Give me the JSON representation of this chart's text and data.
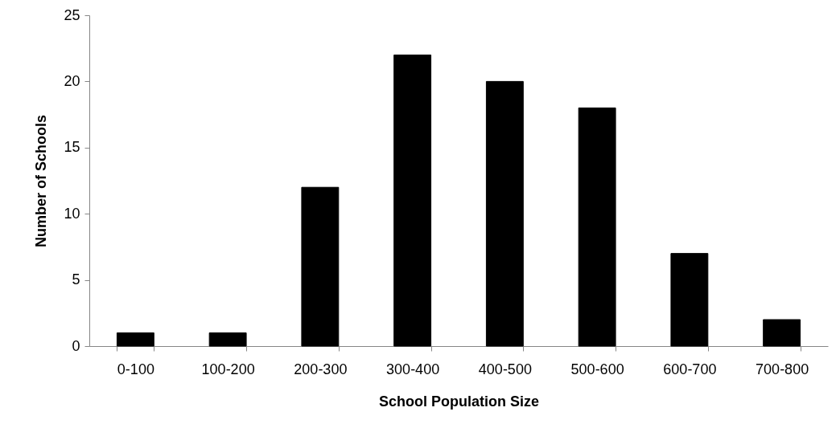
{
  "chart_data": {
    "type": "bar",
    "categories": [
      "0-100",
      "100-200",
      "200-300",
      "300-400",
      "400-500",
      "500-600",
      "600-700",
      "700-800"
    ],
    "values": [
      1,
      1,
      12,
      22,
      20,
      18,
      7,
      2
    ],
    "color": "#000000",
    "xlabel": "School Population Size",
    "ylabel": "Number of Schools",
    "ylim": [
      0,
      25
    ],
    "yticks": [
      0,
      5,
      10,
      15,
      20,
      25
    ],
    "grid": false
  }
}
